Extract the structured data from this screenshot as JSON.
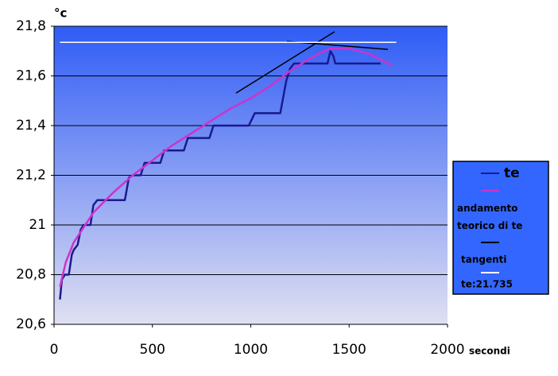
{
  "chart_data": {
    "type": "line",
    "y_label": "°c",
    "x_label": "secondi",
    "xlim": [
      0,
      2000
    ],
    "xticks": [
      0,
      500,
      1000,
      1500,
      2000
    ],
    "ylim": [
      20.6,
      21.8
    ],
    "yticks": [
      {
        "value": 20.6,
        "label": "20,6"
      },
      {
        "value": 20.8,
        "label": "20,8"
      },
      21,
      {
        "value": 21.2,
        "label": "21,2"
      },
      {
        "value": 21.4,
        "label": "21,4"
      },
      {
        "value": 21.6,
        "label": "21,6"
      },
      {
        "value": 21.8,
        "label": "21,8"
      }
    ],
    "grid": true,
    "legend": "right",
    "series": [
      {
        "name": "te",
        "color": "#1a1a8c",
        "x": [
          30,
          40,
          55,
          75,
          90,
          100,
          120,
          135,
          150,
          170,
          185,
          200,
          220,
          360,
          380,
          400,
          440,
          460,
          540,
          560,
          660,
          680,
          790,
          810,
          990,
          1020,
          1150,
          1180,
          1200,
          1220,
          1390,
          1405,
          1420,
          1430,
          1660
        ],
        "values": [
          20.7,
          20.78,
          20.8,
          20.8,
          20.88,
          20.9,
          20.92,
          20.98,
          21.0,
          21.0,
          21.0,
          21.08,
          21.1,
          21.1,
          21.19,
          21.2,
          21.2,
          21.25,
          21.25,
          21.3,
          21.3,
          21.35,
          21.35,
          21.4,
          21.4,
          21.45,
          21.45,
          21.58,
          21.63,
          21.65,
          21.65,
          21.7,
          21.68,
          21.65,
          21.65
        ]
      },
      {
        "name": "andamento teorico di te",
        "color": "#cc33cc",
        "x": [
          30,
          60,
          100,
          200,
          300,
          400,
          500,
          600,
          700,
          800,
          900,
          1000,
          1100,
          1200,
          1300,
          1400,
          1500,
          1600,
          1700,
          1720
        ],
        "values": [
          20.75,
          20.85,
          20.93,
          21.05,
          21.13,
          21.2,
          21.26,
          21.32,
          21.37,
          21.42,
          21.47,
          21.51,
          21.56,
          21.62,
          21.67,
          21.71,
          21.71,
          21.69,
          21.65,
          21.64
        ]
      },
      {
        "name": "tangenti",
        "color": "#000000",
        "x": [
          925,
          1426,
          null,
          1184,
          1697
        ],
        "values": [
          21.531,
          21.778,
          null,
          21.739,
          21.707
        ]
      },
      {
        "name": "te:21.735",
        "color": "#ffffff",
        "x": [
          30,
          1740
        ],
        "values": [
          21.735,
          21.735
        ]
      }
    ]
  }
}
